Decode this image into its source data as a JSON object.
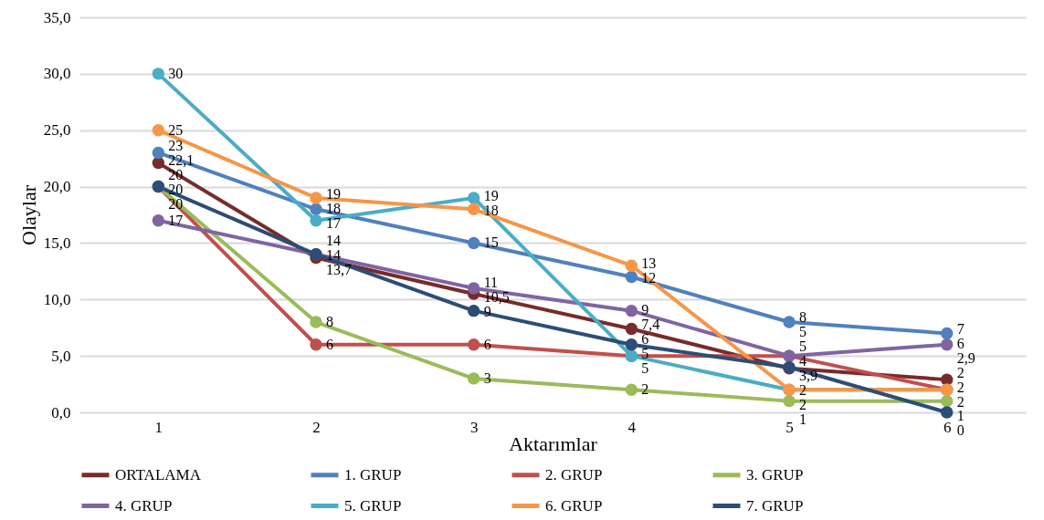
{
  "chart_data": {
    "type": "line",
    "xlabel": "Aktarımlar",
    "ylabel": "Olaylar",
    "categories": [
      "1",
      "2",
      "3",
      "4",
      "5",
      "6"
    ],
    "ylim": [
      0,
      35
    ],
    "yticks": [
      {
        "value": 0,
        "label": "0,0"
      },
      {
        "value": 5,
        "label": "5,0"
      },
      {
        "value": 10,
        "label": "10,0"
      },
      {
        "value": 15,
        "label": "15,0"
      },
      {
        "value": 20,
        "label": "20,0"
      },
      {
        "value": 25,
        "label": "25,0"
      },
      {
        "value": 30,
        "label": "30,0"
      },
      {
        "value": 35,
        "label": "35,0"
      }
    ],
    "grid": "y",
    "legend": "bottom",
    "marker": "circle",
    "line_style": "solid",
    "series": [
      {
        "name": "ORTALAMA",
        "color": "#772c2a",
        "values": [
          22.1,
          13.7,
          10.5,
          7.4,
          3.9,
          2.9
        ],
        "value_labels": [
          "22,1",
          "13,7",
          "10,5",
          "7,4",
          "3,9",
          "2,9"
        ]
      },
      {
        "name": "1. GRUP",
        "color": "#4f81bd",
        "values": [
          23,
          18,
          15,
          12,
          8,
          7
        ],
        "value_labels": [
          "23",
          "18",
          "15",
          "12",
          "8",
          "7"
        ]
      },
      {
        "name": "2. GRUP",
        "color": "#c0504d",
        "values": [
          20,
          6,
          6,
          5,
          5,
          2
        ],
        "value_labels": [
          "20",
          "6",
          "6",
          "5",
          "5",
          "2"
        ]
      },
      {
        "name": "3. GRUP",
        "color": "#9bbb59",
        "values": [
          20,
          8,
          3,
          2,
          1,
          1
        ],
        "value_labels": [
          "20",
          "8",
          "3",
          "2",
          "1",
          "1"
        ]
      },
      {
        "name": "4. GRUP",
        "color": "#8064a2",
        "values": [
          17,
          14,
          11,
          9,
          5,
          6
        ],
        "value_labels": [
          "17",
          "14",
          "11",
          "9",
          "5",
          "6"
        ]
      },
      {
        "name": "5. GRUP",
        "color": "#4bacc6",
        "values": [
          30,
          17,
          19,
          5,
          2,
          2
        ],
        "value_labels": [
          "30",
          "17",
          "19",
          "5",
          "2",
          "2"
        ]
      },
      {
        "name": "6. GRUP",
        "color": "#f79646",
        "values": [
          25,
          19,
          18,
          13,
          2,
          2
        ],
        "value_labels": [
          "25",
          "19",
          "18",
          "13",
          "2",
          "2"
        ]
      },
      {
        "name": "7. GRUP",
        "color": "#2c4d75",
        "values": [
          20,
          14,
          9,
          6,
          4,
          0
        ],
        "value_labels": [
          "20",
          "14",
          "9",
          "6",
          "4",
          "0"
        ]
      }
    ]
  }
}
